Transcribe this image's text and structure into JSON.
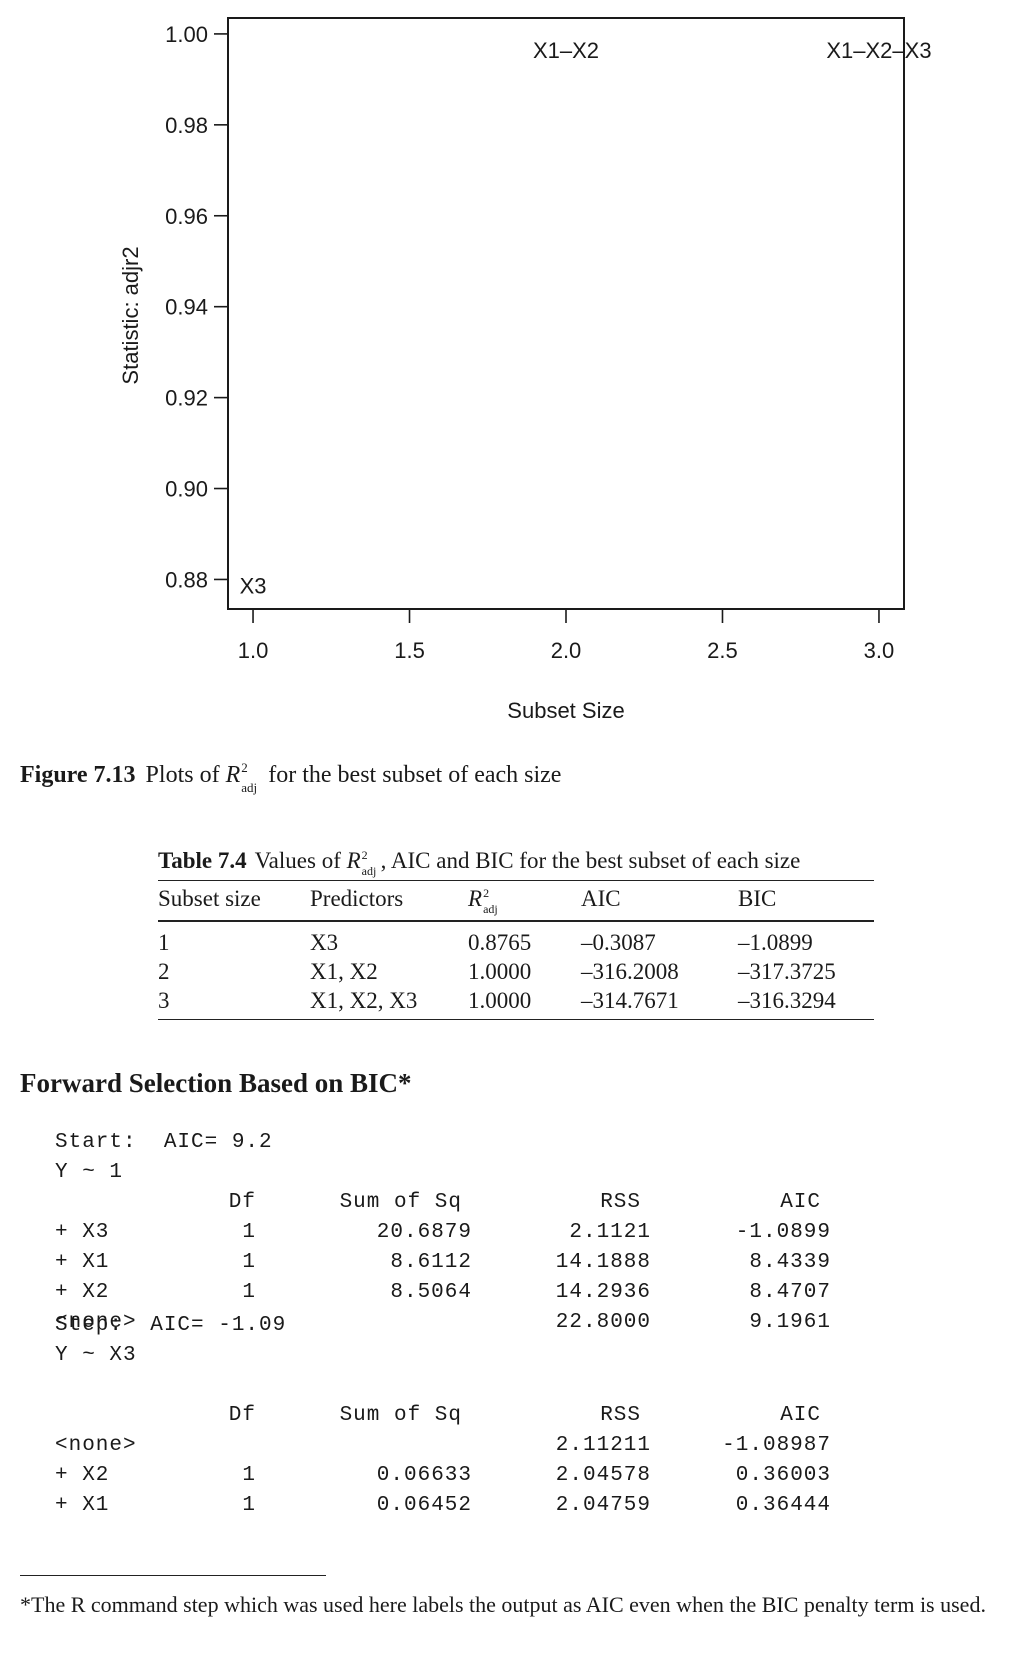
{
  "figure": {
    "label": "Figure 7.13",
    "caption_pre": "Plots of ",
    "caption_r": "R",
    "caption_sup": "2",
    "caption_sub": "adj",
    "caption_post": " for the best subset of each size"
  },
  "chart_data": {
    "type": "scatter",
    "xlabel": "Subset Size",
    "ylabel": "Statistic: adjr2",
    "xlim": [
      0.92,
      3.08
    ],
    "ylim": [
      0.8735,
      1.0035
    ],
    "x_ticks": [
      "1.0",
      "1.5",
      "2.0",
      "2.5",
      "3.0"
    ],
    "y_ticks": [
      "1.00",
      "0.98",
      "0.96",
      "0.94",
      "0.92",
      "0.90",
      "0.88"
    ],
    "points": [
      {
        "x": 1,
        "y": 0.8765,
        "label": "X3"
      },
      {
        "x": 2,
        "y": 1.0,
        "label": "X1–X2"
      },
      {
        "x": 3,
        "y": 1.0,
        "label": "X1–X2–X3"
      }
    ],
    "grid": false,
    "colors": {
      "ink": "#1a1a1a"
    }
  },
  "table": {
    "label": "Table 7.4",
    "title_pre": "Values of ",
    "title_r": "R",
    "title_sup": "2",
    "title_sub": "adj",
    "title_post": ", AIC and BIC for the best subset of each size",
    "headers": {
      "size": "Subset size",
      "predictors": "Predictors",
      "r": "R",
      "r_sup": "2",
      "r_sub": "adj",
      "aic": "AIC",
      "bic": "BIC"
    },
    "rows": [
      {
        "size": "1",
        "predictors": "X3",
        "r2": "0.8765",
        "aic": "–0.3087",
        "bic": "–1.0899"
      },
      {
        "size": "2",
        "predictors": "X1, X2",
        "r2": "1.0000",
        "aic": "–316.2008",
        "bic": "–317.3725"
      },
      {
        "size": "3",
        "predictors": "X1, X2, X3",
        "r2": "1.0000",
        "aic": "–314.7671",
        "bic": "–316.3294"
      }
    ]
  },
  "section_title": "Forward Selection Based on BIC*",
  "output": {
    "start_line": "Start:  AIC= 9.2",
    "model1": "Y ~ 1",
    "headers1": {
      "df": "Df",
      "ssq": "Sum of Sq",
      "rss": "RSS",
      "aic": "AIC"
    },
    "rows1": [
      {
        "term": "+ X3",
        "df": "1",
        "ssq": "20.6879",
        "rss": "2.1121",
        "aic": "-1.0899"
      },
      {
        "term": "+ X1",
        "df": "1",
        "ssq": "8.6112",
        "rss": "14.1888",
        "aic": "8.4339"
      },
      {
        "term": "+ X2",
        "df": "1",
        "ssq": "8.5064",
        "rss": "14.2936",
        "aic": "8.4707"
      },
      {
        "term": "<none>",
        "df": "",
        "ssq": "",
        "rss": "22.8000",
        "aic": "9.1961"
      }
    ],
    "step_line": "Step:  AIC= -1.09",
    "model2": "Y ~ X3",
    "headers2": {
      "df": "Df",
      "ssq": "Sum of Sq",
      "rss": "RSS",
      "aic": "AIC"
    },
    "rows2": [
      {
        "term": "<none>",
        "df": "",
        "ssq": "",
        "rss": "2.11211",
        "aic": "-1.08987"
      },
      {
        "term": "+ X2",
        "df": "1",
        "ssq": "0.06633",
        "rss": "2.04578",
        "aic": "0.36003"
      },
      {
        "term": "+ X1",
        "df": "1",
        "ssq": "0.06452",
        "rss": "2.04759",
        "aic": "0.36444"
      }
    ]
  },
  "footnote": {
    "mark": "*",
    "text": "The R command step which was used here labels the output as AIC even when the BIC penalty term is used."
  }
}
